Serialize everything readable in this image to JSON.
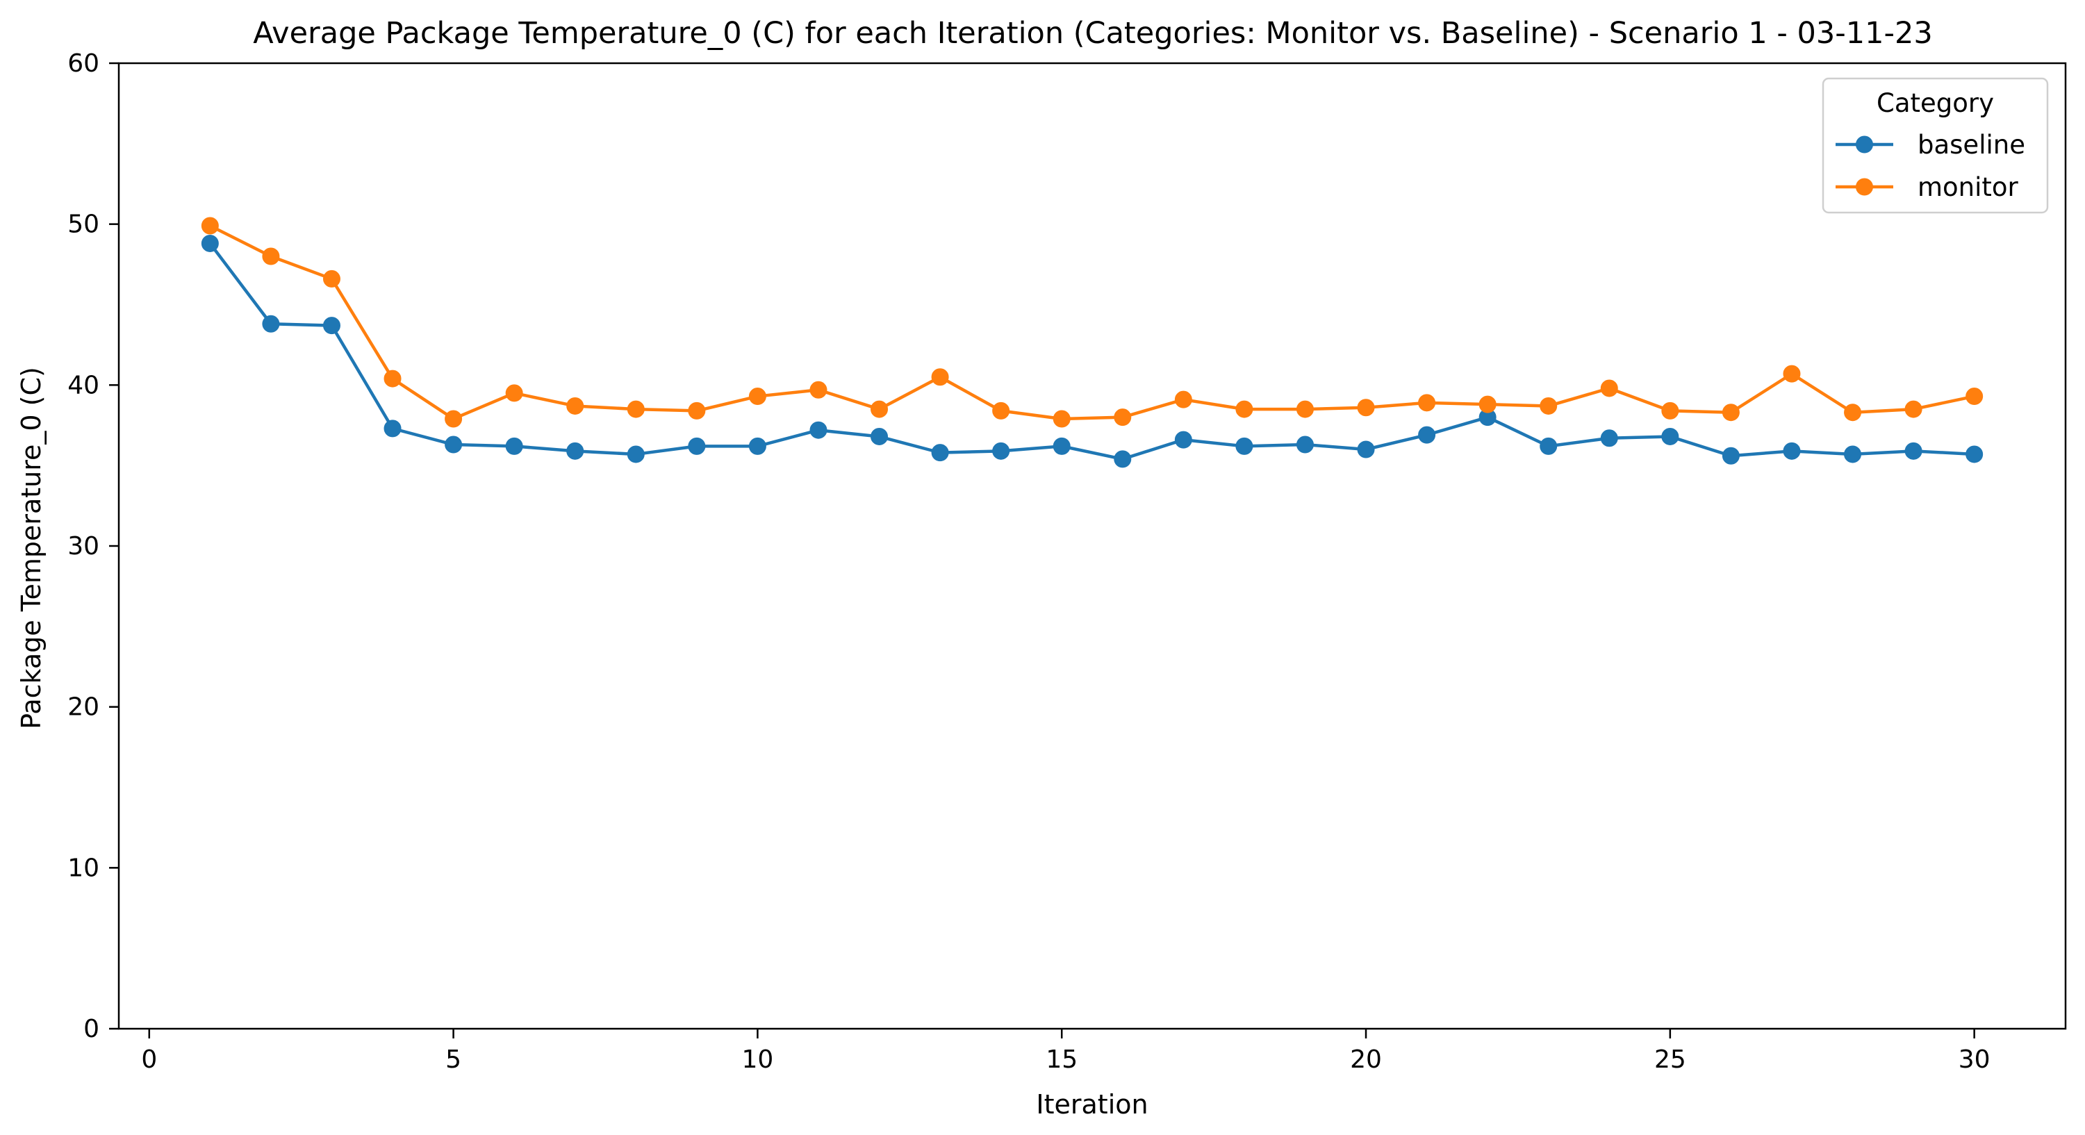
{
  "chart_data": {
    "type": "line",
    "title": "Average Package Temperature_0 (C) for each Iteration (Categories: Monitor vs. Baseline) - Scenario 1 - 03-11-23",
    "xlabel": "Iteration",
    "ylabel": "Package Temperature_0 (C)",
    "xlim": [
      -0.5,
      31.5
    ],
    "ylim": [
      0,
      60
    ],
    "xticks": [
      0,
      5,
      10,
      15,
      20,
      25,
      30
    ],
    "yticks": [
      0,
      10,
      20,
      30,
      40,
      50,
      60
    ],
    "grid": false,
    "legend": {
      "title": "Category",
      "placement": "top-right"
    },
    "x": [
      1,
      2,
      3,
      4,
      5,
      6,
      7,
      8,
      9,
      10,
      11,
      12,
      13,
      14,
      15,
      16,
      17,
      18,
      19,
      20,
      21,
      22,
      23,
      24,
      25,
      26,
      27,
      28,
      29,
      30
    ],
    "series": [
      {
        "name": "baseline",
        "color": "#1f77b4",
        "values": [
          48.8,
          43.8,
          43.7,
          37.3,
          36.3,
          36.2,
          35.9,
          35.7,
          36.2,
          36.2,
          37.2,
          36.8,
          35.8,
          35.9,
          36.2,
          35.4,
          36.6,
          36.2,
          36.3,
          36.0,
          36.9,
          38.0,
          36.2,
          36.7,
          36.8,
          35.6,
          35.9,
          35.7,
          35.9,
          35.7
        ]
      },
      {
        "name": "monitor",
        "color": "#ff7f0e",
        "values": [
          49.9,
          48.0,
          46.6,
          40.4,
          37.9,
          39.5,
          38.7,
          38.5,
          38.4,
          39.3,
          39.7,
          38.5,
          40.5,
          38.4,
          37.9,
          38.0,
          39.1,
          38.5,
          38.5,
          38.6,
          38.9,
          38.8,
          38.7,
          39.8,
          38.4,
          38.3,
          40.7,
          38.3,
          38.5,
          39.3
        ]
      }
    ]
  }
}
